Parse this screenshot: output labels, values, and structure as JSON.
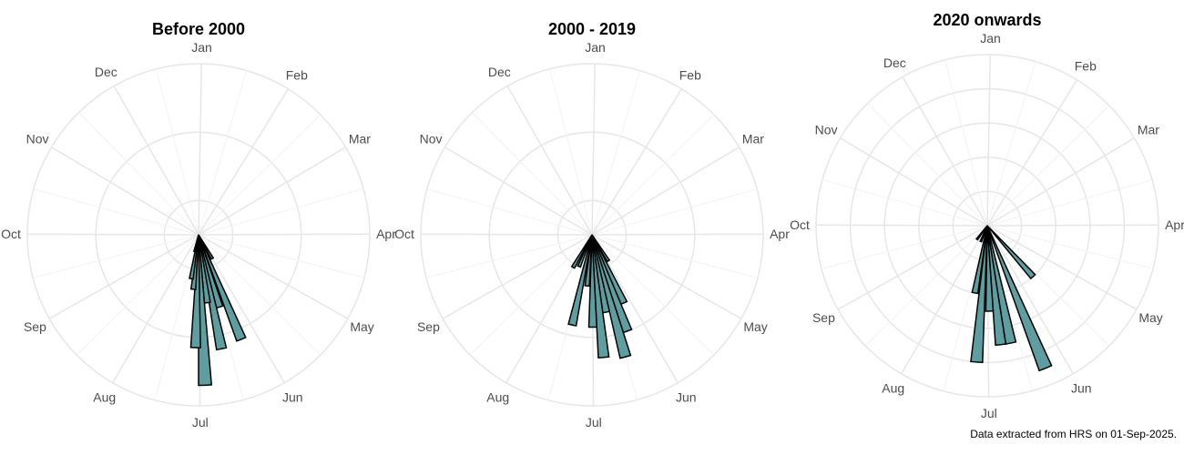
{
  "chart_data": {
    "type": "bar",
    "projection": "polar",
    "angular_axis": "day of year (clockwise, 0 at top)",
    "radial_axis": "count",
    "grid": true,
    "bar_fill": "#5f9ea0",
    "bar_stroke": "#000000",
    "grid_color": "#e6e6e6",
    "month_labels": [
      "Jan",
      "Feb",
      "Mar",
      "Apr",
      "May",
      "Jun",
      "Jul",
      "Aug",
      "Sep",
      "Oct",
      "Nov",
      "Dec"
    ],
    "panels": [
      {
        "title": "Before 2000",
        "rmax": 50,
        "rgrid": [
          10,
          30,
          50
        ],
        "bars": [
          {
            "center": 152,
            "value": 8
          },
          {
            "center": 160,
            "value": 33
          },
          {
            "center": 166,
            "value": 22
          },
          {
            "center": 171,
            "value": 34
          },
          {
            "center": 175,
            "value": 20
          },
          {
            "center": 180,
            "value": 44
          },
          {
            "center": 184,
            "value": 33
          },
          {
            "center": 188,
            "value": 16
          },
          {
            "center": 192,
            "value": 13
          },
          {
            "center": 196,
            "value": 5
          }
        ]
      },
      {
        "title": "2000 - 2019",
        "rmax": 50,
        "rgrid": [
          10,
          30,
          50
        ],
        "bars": [
          {
            "center": 150,
            "value": 9
          },
          {
            "center": 157,
            "value": 22
          },
          {
            "center": 162,
            "value": 30
          },
          {
            "center": 167,
            "value": 37
          },
          {
            "center": 172,
            "value": 23
          },
          {
            "center": 177,
            "value": 36
          },
          {
            "center": 182,
            "value": 27
          },
          {
            "center": 188,
            "value": 15
          },
          {
            "center": 195,
            "value": 27
          },
          {
            "center": 205,
            "value": 10
          },
          {
            "center": 213,
            "value": 11
          }
        ]
      },
      {
        "title": "2020 onwards",
        "rmax": 10,
        "rgrid": [
          2,
          4,
          6,
          8,
          10
        ],
        "bars": [
          {
            "center": 140,
            "value": 4
          },
          {
            "center": 160,
            "value": 9
          },
          {
            "center": 171,
            "value": 7
          },
          {
            "center": 176,
            "value": 7
          },
          {
            "center": 181,
            "value": 5
          },
          {
            "center": 187,
            "value": 8
          },
          {
            "center": 193,
            "value": 4
          },
          {
            "center": 205,
            "value": 1
          },
          {
            "center": 220,
            "value": 1
          }
        ]
      }
    ]
  },
  "caption": "Data extracted from HRS on 01-Sep-2025."
}
